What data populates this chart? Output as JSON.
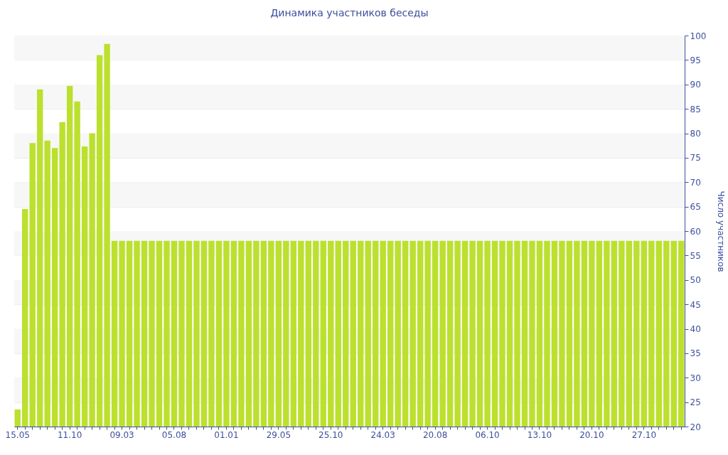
{
  "chart_data": {
    "type": "bar",
    "title": "Динамика участников беседы",
    "ylabel": "Число участников",
    "categories": [
      "15.05",
      null,
      null,
      null,
      null,
      null,
      null,
      "11.10",
      null,
      null,
      null,
      null,
      null,
      null,
      "09.03",
      null,
      null,
      null,
      null,
      null,
      null,
      "05.08",
      null,
      null,
      null,
      null,
      null,
      null,
      "01.01",
      null,
      null,
      null,
      null,
      null,
      null,
      "29.05",
      null,
      null,
      null,
      null,
      null,
      null,
      "25.10",
      null,
      null,
      null,
      null,
      null,
      null,
      "24.03",
      null,
      null,
      null,
      null,
      null,
      null,
      "20.08",
      null,
      null,
      null,
      null,
      null,
      null,
      "06.10",
      null,
      null,
      null,
      null,
      null,
      null,
      "13.10",
      null,
      null,
      null,
      null,
      null,
      null,
      "20.10",
      null,
      null,
      null,
      null,
      null,
      null,
      "27.10",
      null,
      null,
      null,
      null,
      null
    ],
    "values": [
      23.5,
      64.5,
      78,
      89,
      78.5,
      77,
      82.3,
      89.7,
      86.5,
      77.3,
      80,
      96,
      98.3,
      58,
      58,
      58,
      58,
      58,
      58,
      58,
      58,
      58,
      58,
      58,
      58,
      58,
      58,
      58,
      58,
      58,
      58,
      58,
      58,
      58,
      58,
      58,
      58,
      58,
      58,
      58,
      58,
      58,
      58,
      58,
      58,
      58,
      58,
      58,
      58,
      58,
      58,
      58,
      58,
      58,
      58,
      58,
      58,
      58,
      58,
      58,
      58,
      58,
      58,
      58,
      58,
      58,
      58,
      58,
      58,
      58,
      58,
      58,
      58,
      58,
      58,
      58,
      58,
      58,
      58,
      58,
      58,
      58,
      58,
      58,
      58,
      58,
      58,
      58,
      58,
      58
    ],
    "color": "#bce02e",
    "ylim": [
      20,
      100
    ],
    "yticks": [
      20,
      25,
      30,
      35,
      40,
      45,
      50,
      55,
      60,
      65,
      70,
      75,
      80,
      85,
      90,
      95,
      100
    ],
    "grid": true
  }
}
